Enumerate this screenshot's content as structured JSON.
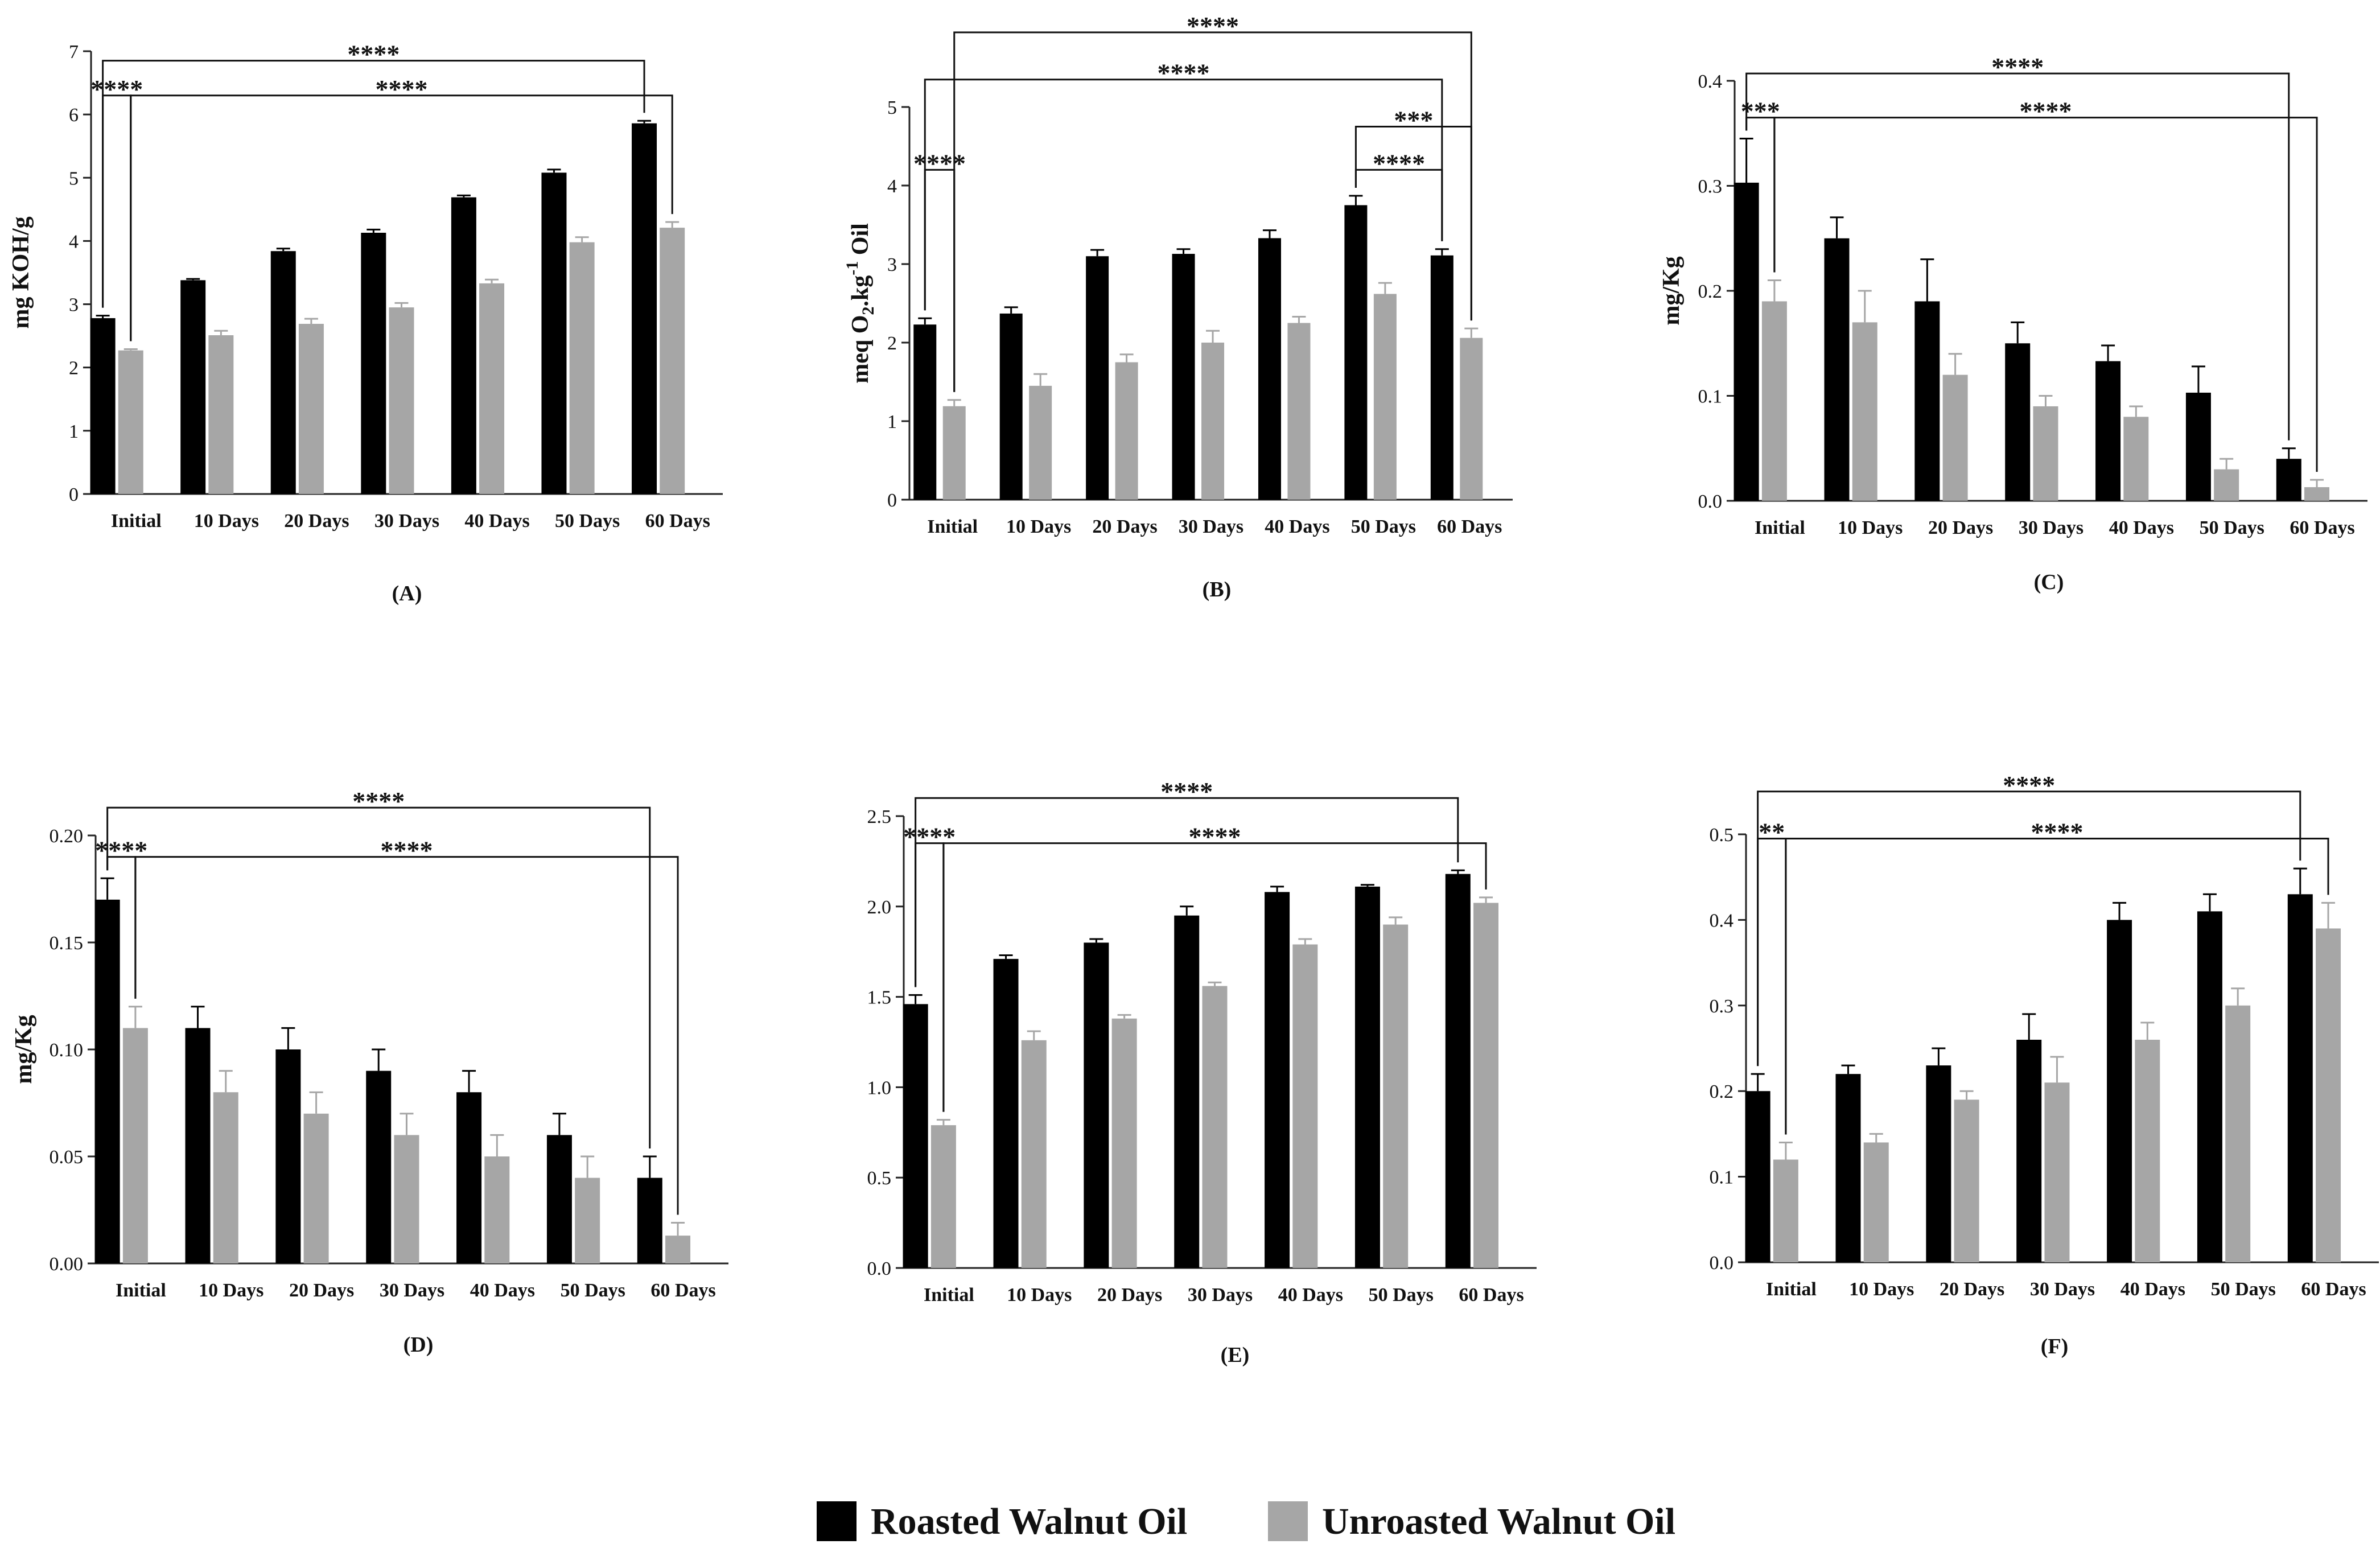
{
  "legend": {
    "roasted_label": "Roasted Walnut Oil",
    "unroasted_label": "Unroasted Walnut Oil",
    "roasted_color": "#000000",
    "unroasted_color": "#a6a6a6"
  },
  "chart_data": [
    {
      "type": "bar",
      "panel": "(A)",
      "ylabel": "mg KOH/g",
      "ylabel_parts": [],
      "ylim": [
        0,
        7
      ],
      "yticks": [
        0,
        1,
        2,
        3,
        4,
        5,
        6,
        7
      ],
      "ytick_labels": [
        "0",
        "1",
        "2",
        "3",
        "4",
        "5",
        "6",
        "7"
      ],
      "categories": [
        "Initial",
        "10 Days",
        "20 Days",
        "30 Days",
        "40 Days",
        "50 Days",
        "60 Days"
      ],
      "series": [
        {
          "name": "Roasted Walnut Oil",
          "values": [
            2.78,
            3.38,
            3.84,
            4.13,
            4.69,
            5.08,
            5.86
          ],
          "errors": [
            0.04,
            0.02,
            0.04,
            0.05,
            0.03,
            0.05,
            0.04
          ]
        },
        {
          "name": "Unroasted Walnut Oil",
          "values": [
            2.27,
            2.51,
            2.69,
            2.95,
            3.33,
            3.98,
            4.21
          ],
          "errors": [
            0.02,
            0.07,
            0.08,
            0.07,
            0.06,
            0.08,
            0.09
          ]
        }
      ],
      "annotations": [
        {
          "text": "****",
          "from": [
            "Initial",
            "Roasted Walnut Oil"
          ],
          "to": [
            "Initial",
            "Unroasted Walnut Oil"
          ],
          "level": 6.3
        },
        {
          "text": "****",
          "from": [
            "Initial",
            "Unroasted Walnut Oil"
          ],
          "to": [
            "60 Days",
            "Unroasted Walnut Oil"
          ],
          "level": 6.3
        },
        {
          "text": "****",
          "from": [
            "Initial",
            "Roasted Walnut Oil"
          ],
          "to": [
            "60 Days",
            "Roasted Walnut Oil"
          ],
          "level": 6.85
        }
      ]
    },
    {
      "type": "bar",
      "panel": "(B)",
      "ylabel": "",
      "ylabel_parts": [
        "meq O",
        "2",
        ".kg",
        "-1",
        " Oil"
      ],
      "ylim": [
        0,
        5
      ],
      "yticks": [
        0,
        1,
        2,
        3,
        4,
        5
      ],
      "ytick_labels": [
        "0",
        "1",
        "2",
        "3",
        "4",
        "5"
      ],
      "categories": [
        "Initial",
        "10 Days",
        "20 Days",
        "30 Days",
        "40 Days",
        "50 Days",
        "60 Days"
      ],
      "series": [
        {
          "name": "Roasted Walnut Oil",
          "values": [
            2.23,
            2.37,
            3.1,
            3.13,
            3.33,
            3.75,
            3.11
          ],
          "errors": [
            0.08,
            0.08,
            0.08,
            0.06,
            0.1,
            0.12,
            0.08
          ]
        },
        {
          "name": "Unroasted Walnut Oil",
          "values": [
            1.19,
            1.45,
            1.75,
            2.0,
            2.25,
            2.62,
            2.06
          ],
          "errors": [
            0.08,
            0.15,
            0.1,
            0.15,
            0.08,
            0.14,
            0.12
          ]
        }
      ],
      "annotations": [
        {
          "text": "****",
          "from": [
            "Initial",
            "Roasted Walnut Oil"
          ],
          "to": [
            "Initial",
            "Unroasted Walnut Oil"
          ],
          "level": 4.2
        },
        {
          "text": "****",
          "from": [
            "50 Days",
            "Roasted Walnut Oil"
          ],
          "to": [
            "60 Days",
            "Roasted Walnut Oil"
          ],
          "level": 4.2
        },
        {
          "text": "***",
          "from": [
            "50 Days",
            "Roasted Walnut Oil"
          ],
          "to": [
            "60 Days",
            "Unroasted Walnut Oil"
          ],
          "level": 4.75
        },
        {
          "text": "****",
          "from": [
            "Initial",
            "Roasted Walnut Oil"
          ],
          "to": [
            "60 Days",
            "Roasted Walnut Oil"
          ],
          "level": 5.35
        },
        {
          "text": "****",
          "from": [
            "Initial",
            "Unroasted Walnut Oil"
          ],
          "to": [
            "60 Days",
            "Unroasted Walnut Oil"
          ],
          "level": 5.95
        }
      ]
    },
    {
      "type": "bar",
      "panel": "(C)",
      "ylabel": "mg/Kg",
      "ylabel_parts": [],
      "ylim": [
        0,
        0.4
      ],
      "yticks": [
        0,
        0.1,
        0.2,
        0.3,
        0.4
      ],
      "ytick_labels": [
        "0.0",
        "0.1",
        "0.2",
        "0.3",
        "0.4"
      ],
      "categories": [
        "Initial",
        "10 Days",
        "20 Days",
        "30 Days",
        "40 Days",
        "50 Days",
        "60 Days"
      ],
      "series": [
        {
          "name": "Roasted Walnut Oil",
          "values": [
            0.303,
            0.25,
            0.19,
            0.15,
            0.133,
            0.103,
            0.04
          ],
          "errors": [
            0.042,
            0.02,
            0.04,
            0.02,
            0.015,
            0.025,
            0.01
          ]
        },
        {
          "name": "Unroasted Walnut Oil",
          "values": [
            0.19,
            0.17,
            0.12,
            0.09,
            0.08,
            0.03,
            0.013
          ],
          "errors": [
            0.02,
            0.03,
            0.02,
            0.01,
            0.01,
            0.01,
            0.007
          ]
        }
      ],
      "annotations": [
        {
          "text": "***",
          "from": [
            "Initial",
            "Roasted Walnut Oil"
          ],
          "to": [
            "Initial",
            "Unroasted Walnut Oil"
          ],
          "level": 0.365
        },
        {
          "text": "****",
          "from": [
            "Initial",
            "Unroasted Walnut Oil"
          ],
          "to": [
            "60 Days",
            "Unroasted Walnut Oil"
          ],
          "level": 0.365
        },
        {
          "text": "****",
          "from": [
            "Initial",
            "Roasted Walnut Oil"
          ],
          "to": [
            "60 Days",
            "Roasted Walnut Oil"
          ],
          "level": 0.407
        }
      ]
    },
    {
      "type": "bar",
      "panel": "(D)",
      "ylabel": "mg/Kg",
      "ylabel_parts": [],
      "ylim": [
        0,
        0.2
      ],
      "yticks": [
        0,
        0.05,
        0.1,
        0.15,
        0.2
      ],
      "ytick_labels": [
        "0.00",
        "0.05",
        "0.10",
        "0.15",
        "0.20"
      ],
      "categories": [
        "Initial",
        "10 Days",
        "20 Days",
        "30 Days",
        "40 Days",
        "50 Days",
        "60 Days"
      ],
      "series": [
        {
          "name": "Roasted Walnut Oil",
          "values": [
            0.17,
            0.11,
            0.1,
            0.09,
            0.08,
            0.06,
            0.04
          ],
          "errors": [
            0.01,
            0.01,
            0.01,
            0.01,
            0.01,
            0.01,
            0.01
          ]
        },
        {
          "name": "Unroasted Walnut Oil",
          "values": [
            0.11,
            0.08,
            0.07,
            0.06,
            0.05,
            0.04,
            0.013
          ],
          "errors": [
            0.01,
            0.01,
            0.01,
            0.01,
            0.01,
            0.01,
            0.006
          ]
        }
      ],
      "annotations": [
        {
          "text": "****",
          "from": [
            "Initial",
            "Roasted Walnut Oil"
          ],
          "to": [
            "Initial",
            "Unroasted Walnut Oil"
          ],
          "level": 0.19
        },
        {
          "text": "****",
          "from": [
            "Initial",
            "Unroasted Walnut Oil"
          ],
          "to": [
            "60 Days",
            "Unroasted Walnut Oil"
          ],
          "level": 0.19
        },
        {
          "text": "****",
          "from": [
            "Initial",
            "Roasted Walnut Oil"
          ],
          "to": [
            "60 Days",
            "Roasted Walnut Oil"
          ],
          "level": 0.213
        }
      ]
    },
    {
      "type": "bar",
      "panel": "(E)",
      "ylabel": "",
      "ylabel_parts": [],
      "ylim": [
        0,
        2.5
      ],
      "yticks": [
        0,
        0.5,
        1,
        1.5,
        2,
        2.5
      ],
      "ytick_labels": [
        "0.0",
        "0.5",
        "1.0",
        "1.5",
        "2.0",
        "2.5"
      ],
      "categories": [
        "Initial",
        "10 Days",
        "20 Days",
        "30 Days",
        "40 Days",
        "50 Days",
        "60 Days"
      ],
      "series": [
        {
          "name": "Roasted Walnut Oil",
          "values": [
            1.46,
            1.71,
            1.8,
            1.95,
            2.08,
            2.11,
            2.18
          ],
          "errors": [
            0.05,
            0.02,
            0.02,
            0.05,
            0.03,
            0.01,
            0.02
          ]
        },
        {
          "name": "Unroasted Walnut Oil",
          "values": [
            0.79,
            1.26,
            1.38,
            1.56,
            1.79,
            1.9,
            2.02
          ],
          "errors": [
            0.03,
            0.05,
            0.02,
            0.02,
            0.03,
            0.04,
            0.03
          ]
        }
      ],
      "annotations": [
        {
          "text": "****",
          "from": [
            "Initial",
            "Roasted Walnut Oil"
          ],
          "to": [
            "Initial",
            "Unroasted Walnut Oil"
          ],
          "level": 2.35
        },
        {
          "text": "****",
          "from": [
            "Initial",
            "Unroasted Walnut Oil"
          ],
          "to": [
            "60 Days",
            "Unroasted Walnut Oil"
          ],
          "level": 2.35
        },
        {
          "text": "****",
          "from": [
            "Initial",
            "Roasted Walnut Oil"
          ],
          "to": [
            "60 Days",
            "Roasted Walnut Oil"
          ],
          "level": 2.6
        }
      ]
    },
    {
      "type": "bar",
      "panel": "(F)",
      "ylabel": "",
      "ylabel_parts": [],
      "ylim": [
        0,
        0.5
      ],
      "yticks": [
        0,
        0.1,
        0.2,
        0.3,
        0.4,
        0.5
      ],
      "ytick_labels": [
        "0.0",
        "0.1",
        "0.2",
        "0.3",
        "0.4",
        "0.5"
      ],
      "categories": [
        "Initial",
        "10 Days",
        "20 Days",
        "30 Days",
        "40 Days",
        "50 Days",
        "60 Days"
      ],
      "series": [
        {
          "name": "Roasted Walnut Oil",
          "values": [
            0.2,
            0.22,
            0.23,
            0.26,
            0.4,
            0.41,
            0.43
          ],
          "errors": [
            0.02,
            0.01,
            0.02,
            0.03,
            0.02,
            0.02,
            0.03
          ]
        },
        {
          "name": "Unroasted Walnut Oil",
          "values": [
            0.12,
            0.14,
            0.19,
            0.21,
            0.26,
            0.3,
            0.39
          ],
          "errors": [
            0.02,
            0.01,
            0.01,
            0.03,
            0.02,
            0.02,
            0.03
          ]
        }
      ],
      "annotations": [
        {
          "text": "**",
          "from": [
            "Initial",
            "Roasted Walnut Oil"
          ],
          "to": [
            "Initial",
            "Unroasted Walnut Oil"
          ],
          "level": 0.495
        },
        {
          "text": "****",
          "from": [
            "Initial",
            "Unroasted Walnut Oil"
          ],
          "to": [
            "60 Days",
            "Unroasted Walnut Oil"
          ],
          "level": 0.495
        },
        {
          "text": "****",
          "from": [
            "Initial",
            "Roasted Walnut Oil"
          ],
          "to": [
            "60 Days",
            "Roasted Walnut Oil"
          ],
          "level": 0.55
        }
      ]
    }
  ]
}
